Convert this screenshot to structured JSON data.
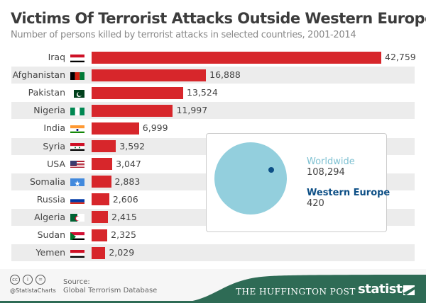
{
  "header": {
    "title": "Victims Of Terrorist Attacks Outside Western Europe",
    "subtitle": "Number of persons killed by terrorist attacks in selected countries, 2001-2014"
  },
  "chart_data": {
    "type": "bar",
    "orientation": "horizontal",
    "title": "Victims Of Terrorist Attacks Outside Western Europe",
    "subtitle": "Number of persons killed by terrorist attacks in selected countries, 2001-2014",
    "categories": [
      "Iraq",
      "Afghanistan",
      "Pakistan",
      "Nigeria",
      "India",
      "Syria",
      "USA",
      "Somalia",
      "Russia",
      "Algeria",
      "Sudan",
      "Yemen"
    ],
    "values": [
      42759,
      16888,
      13524,
      11997,
      6999,
      3592,
      3047,
      2883,
      2606,
      2415,
      2325,
      2029
    ],
    "value_labels": [
      "42,759",
      "16,888",
      "13,524",
      "11,997",
      "6,999",
      "3,592",
      "3,047",
      "2,883",
      "2,606",
      "2,415",
      "2,325",
      "2,029"
    ],
    "bar_color": "#d7262b",
    "xlim": [
      0,
      42759
    ],
    "grid": false,
    "inset": {
      "type": "proportional-circles",
      "items": [
        {
          "name": "Worldwide",
          "value": 108294,
          "label": "108,294",
          "color": "#93cfdd"
        },
        {
          "name": "Western Europe",
          "value": 420,
          "label": "420",
          "color": "#0d4f86"
        }
      ]
    }
  },
  "footer": {
    "source_label": "Source:",
    "source": "Global Terrorism Database",
    "handle": "@StatistaCharts",
    "partner": "THE HUFFINGTON POST",
    "brand": "statista",
    "license_icons": [
      "cc-icon",
      "by-icon",
      "nd-icon"
    ],
    "brand_color": "#2e6b55"
  }
}
